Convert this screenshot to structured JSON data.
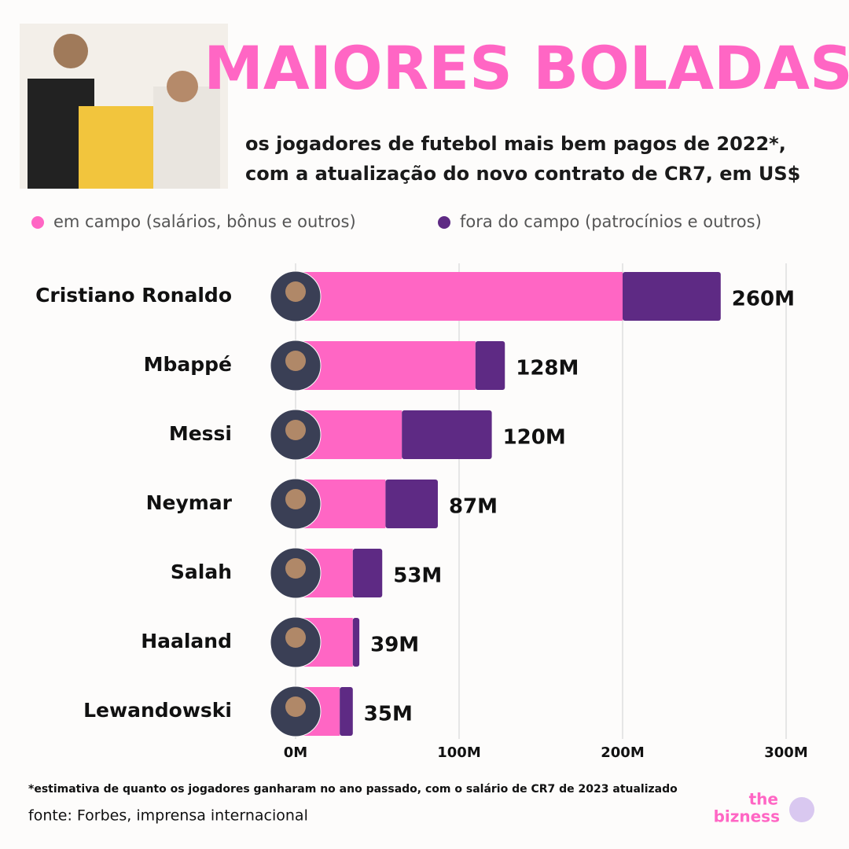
{
  "chart_data": {
    "type": "stacked-barh",
    "title": "MAIORES BOLADAS",
    "subtitle": [
      "os jogadores de futebol mais bem pagos de 2022*,",
      "com a atualização do novo contrato de CR7, em US$"
    ],
    "categories": [
      "Cristiano Ronaldo",
      "Mbappé",
      "Messi",
      "Neymar",
      "Salah",
      "Haaland",
      "Lewandowski"
    ],
    "series": [
      {
        "name": "em campo (salários, bônus e outros)",
        "color": "#ff66c4",
        "values": [
          200,
          110,
          65,
          55,
          35,
          35,
          27
        ]
      },
      {
        "name": "fora do campo (patrocínios e outros)",
        "color": "#5e2a84",
        "values": [
          60,
          18,
          55,
          32,
          18,
          4,
          8
        ]
      }
    ],
    "totals": {
      "values": [
        260,
        128,
        120,
        87,
        53,
        39,
        35
      ],
      "value_labels": [
        "260M",
        "128M",
        "120M",
        "87M",
        "53M",
        "39M",
        "35M"
      ]
    },
    "xlim": [
      0,
      300
    ],
    "xticks": [
      {
        "value": 0,
        "label": "0M"
      },
      {
        "value": 100,
        "label": "100M"
      },
      {
        "value": 200,
        "label": "200M"
      },
      {
        "value": 300,
        "label": "300M"
      }
    ],
    "grid": true,
    "footnote": "*estimativa de quanto os jogadores ganharam no ano passado, com o salário de CR7 de 2023 atualizado",
    "source": "fonte: Forbes, imprensa internacional",
    "logo": [
      "the",
      "bizness"
    ]
  }
}
